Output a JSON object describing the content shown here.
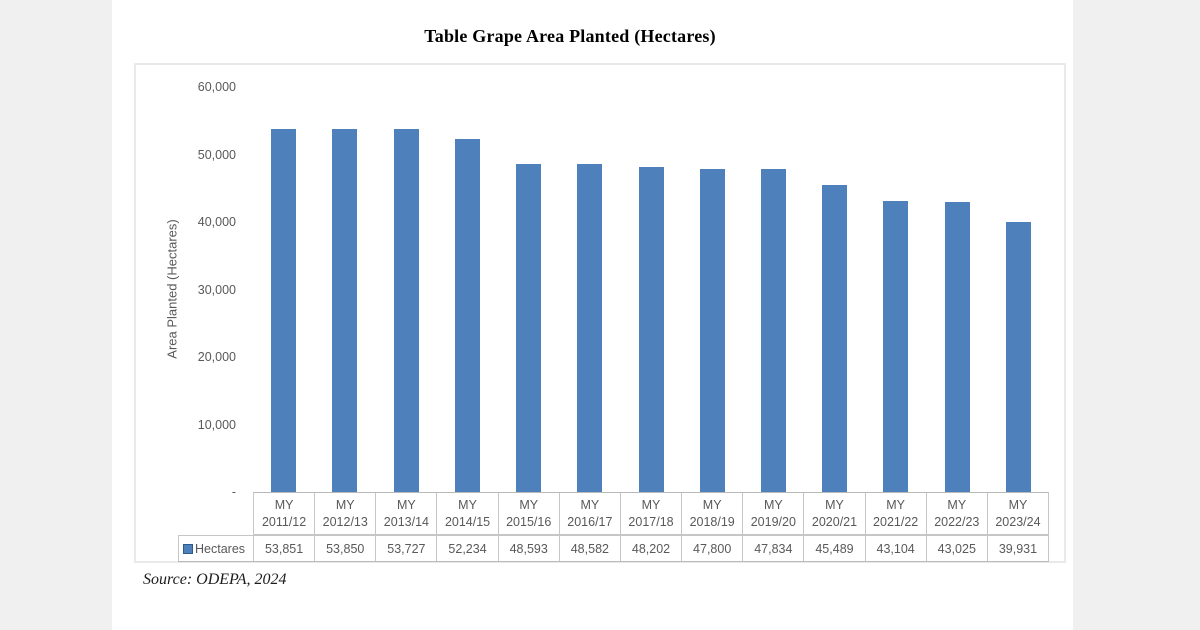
{
  "header": {
    "title": "Table Grape Area Planted (Hectares)"
  },
  "footer": {
    "source_note": "Source: ODEPA, 2024"
  },
  "chart_data": {
    "type": "bar",
    "title": "Table Grape Area Planted (Hectares)",
    "xlabel": "",
    "ylabel": "Area Planted (Hectares)",
    "ylim": [
      0,
      60000
    ],
    "ytick_interval": 10000,
    "ytick_labels": [
      "60,000",
      "50,000",
      "40,000",
      "30,000",
      "20,000",
      "10,000",
      "-"
    ],
    "grid": false,
    "legend_position": "data-table-row-label",
    "data_table_shown": true,
    "categories": [
      "MY 2011/12",
      "MY 2012/13",
      "MY 2013/14",
      "MY 2014/15",
      "MY 2015/16",
      "MY 2016/17",
      "MY 2017/18",
      "MY 2018/19",
      "MY 2019/20",
      "MY 2020/21",
      "MY 2021/22",
      "MY 2022/23",
      "MY 2023/24"
    ],
    "series": [
      {
        "name": "Hectares",
        "color": "#4e80bc",
        "values": [
          53851,
          53850,
          53727,
          52234,
          48593,
          48582,
          48202,
          47800,
          47834,
          45489,
          43104,
          43025,
          39931
        ],
        "value_labels": [
          "53,851",
          "53,850",
          "53,727",
          "52,234",
          "48,593",
          "48,582",
          "48,202",
          "47,800",
          "47,834",
          "45,489",
          "43,104",
          "43,025",
          "39,931"
        ]
      }
    ]
  },
  "colors": {
    "bar": "#4e80bc",
    "legend_key_fill": "#4e80bc",
    "legend_key_border": "#2d5c8c",
    "axis_text": "#595959",
    "table_border": "#c6c6c6",
    "frame_border": "#e9e9e9",
    "page_margin": "#f0f0f0"
  }
}
